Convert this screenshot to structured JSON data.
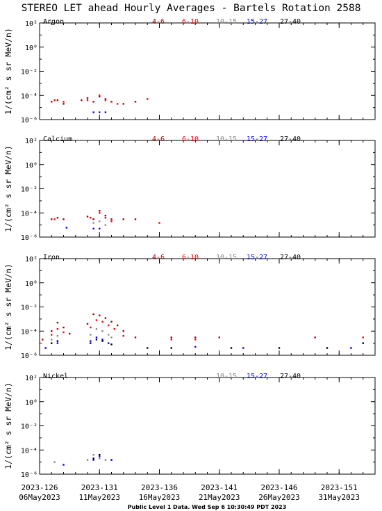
{
  "title": "STEREO LET ahead Hourly Averages - Bartels Rotation 2588",
  "footer": "Public Level 1 Data. Wed Sep  6 10:30:49 PDT 2023",
  "ylabel": "1/(cm² s sr MeV/n)",
  "chart_data": {
    "type": "scatter",
    "y_scale": "log",
    "ylim": [
      1e-06,
      100
    ],
    "y_ticks": [
      {
        "value": 100,
        "label": "10²"
      },
      {
        "value": 1,
        "label": "10⁰"
      },
      {
        "value": 0.01,
        "label": "10⁻²"
      },
      {
        "value": 0.0001,
        "label": "10⁻⁴"
      },
      {
        "value": 1e-06,
        "label": "10⁻⁶"
      }
    ],
    "xlim": [
      "2023-05-06",
      "2023-06-03"
    ],
    "x_ticks": [
      {
        "date": "2023-05-06",
        "doy": "2023-126",
        "label": "06May2023"
      },
      {
        "date": "2023-05-11",
        "doy": "2023-131",
        "label": "11May2023"
      },
      {
        "date": "2023-05-16",
        "doy": "2023-136",
        "label": "16May2023"
      },
      {
        "date": "2023-05-21",
        "doy": "2023-141",
        "label": "21May2023"
      },
      {
        "date": "2023-05-26",
        "doy": "2023-146",
        "label": "26May2023"
      },
      {
        "date": "2023-05-31",
        "doy": "2023-151",
        "label": "31May2023"
      }
    ],
    "energy_bands": [
      {
        "label": "4-6",
        "color": "#a50000"
      },
      {
        "label": "6-10",
        "color": "#ff0000"
      },
      {
        "label": "10-15",
        "color": "#888888"
      },
      {
        "label": "15-27",
        "color": "#0000ff"
      },
      {
        "label": "27-40",
        "color": "#000000"
      }
    ],
    "panels": [
      {
        "element": "Argon",
        "legend": [
          "4-6",
          "6-10",
          "10-15",
          "15-27",
          "27-40"
        ],
        "series": [
          {
            "band": "4-6",
            "points": [
              [
                "2023-05-07",
                3e-05
              ],
              [
                "2023-05-07T12:00",
                4e-05
              ],
              [
                "2023-05-08",
                2e-05
              ],
              [
                "2023-05-09T12:00",
                4e-05
              ],
              [
                "2023-05-10",
                6e-05
              ],
              [
                "2023-05-10T12:00",
                3e-05
              ],
              [
                "2023-05-11",
                8e-05
              ],
              [
                "2023-05-11T12:00",
                5e-05
              ],
              [
                "2023-05-12",
                3e-05
              ],
              [
                "2023-05-13",
                2e-05
              ],
              [
                "2023-05-14",
                3e-05
              ]
            ]
          },
          {
            "band": "6-10",
            "points": [
              [
                "2023-05-07T06:00",
                4e-05
              ],
              [
                "2023-05-08",
                3e-05
              ],
              [
                "2023-05-10",
                4e-05
              ],
              [
                "2023-05-11",
                0.0001
              ],
              [
                "2023-05-11T12:00",
                4e-05
              ],
              [
                "2023-05-12",
                3e-05
              ],
              [
                "2023-05-12T12:00",
                2e-05
              ],
              [
                "2023-05-15",
                5e-05
              ]
            ]
          },
          {
            "band": "15-27",
            "points": [
              [
                "2023-05-10T12:00",
                4e-06
              ],
              [
                "2023-05-11",
                4e-06
              ],
              [
                "2023-05-11T12:00",
                4e-06
              ]
            ]
          }
        ]
      },
      {
        "element": "Calcium",
        "legend": [
          "4-6",
          "6-10",
          "10-15",
          "15-27",
          "27-40"
        ],
        "series": [
          {
            "band": "4-6",
            "points": [
              [
                "2023-05-07",
                3e-05
              ],
              [
                "2023-05-07T12:00",
                4e-05
              ],
              [
                "2023-05-08",
                3e-05
              ],
              [
                "2023-05-10",
                5e-05
              ],
              [
                "2023-05-10T12:00",
                3e-05
              ],
              [
                "2023-05-11",
                0.00015
              ],
              [
                "2023-05-11T12:00",
                6e-05
              ],
              [
                "2023-05-12",
                3e-05
              ],
              [
                "2023-05-13",
                3e-05
              ],
              [
                "2023-05-14",
                3e-05
              ]
            ]
          },
          {
            "band": "6-10",
            "points": [
              [
                "2023-05-07T06:00",
                3e-05
              ],
              [
                "2023-05-10T06:00",
                4e-05
              ],
              [
                "2023-05-11",
                0.0001
              ],
              [
                "2023-05-11T12:00",
                4e-05
              ],
              [
                "2023-05-12",
                2e-05
              ],
              [
                "2023-05-16",
                1.5e-05
              ]
            ]
          },
          {
            "band": "10-15",
            "points": [
              [
                "2023-05-10T12:00",
                1.5e-05
              ],
              [
                "2023-05-11",
                2e-05
              ],
              [
                "2023-05-11T12:00",
                1e-05
              ]
            ]
          },
          {
            "band": "15-27",
            "points": [
              [
                "2023-05-08T06:00",
                6e-06
              ],
              [
                "2023-05-10T12:00",
                5e-06
              ],
              [
                "2023-05-11",
                5e-06
              ]
            ]
          }
        ]
      },
      {
        "element": "Iron",
        "legend": [
          "4-6",
          "6-10",
          "10-15",
          "15-27",
          "27-40"
        ],
        "series": [
          {
            "band": "4-6",
            "points": [
              [
                "2023-05-06T06:00",
                2e-05
              ],
              [
                "2023-05-07",
                0.0001
              ],
              [
                "2023-05-07T12:00",
                0.0005
              ],
              [
                "2023-05-08",
                0.0002
              ],
              [
                "2023-05-08T12:00",
                6e-05
              ],
              [
                "2023-05-10",
                0.0004
              ],
              [
                "2023-05-10T12:00",
                0.0025
              ],
              [
                "2023-05-11",
                0.002
              ],
              [
                "2023-05-11T12:00",
                0.0012
              ],
              [
                "2023-05-12",
                0.0006
              ],
              [
                "2023-05-12T12:00",
                0.0003
              ],
              [
                "2023-05-13",
                0.0001
              ],
              [
                "2023-05-14",
                3e-05
              ],
              [
                "2023-05-17",
                3e-05
              ],
              [
                "2023-05-19",
                3e-05
              ],
              [
                "2023-05-21",
                3e-05
              ],
              [
                "2023-05-29",
                3e-05
              ]
            ]
          },
          {
            "band": "6-10",
            "points": [
              [
                "2023-05-07",
                5e-05
              ],
              [
                "2023-05-07T12:00",
                0.00015
              ],
              [
                "2023-05-08",
                8e-05
              ],
              [
                "2023-05-10T06:00",
                0.0002
              ],
              [
                "2023-05-10T18:00",
                0.0008
              ],
              [
                "2023-05-11T06:00",
                0.0006
              ],
              [
                "2023-05-11T18:00",
                0.0003
              ],
              [
                "2023-05-12T06:00",
                0.00015
              ],
              [
                "2023-05-13",
                4e-05
              ],
              [
                "2023-05-17",
                2e-05
              ],
              [
                "2023-05-19",
                2e-05
              ],
              [
                "2023-06-02",
                3e-05
              ]
            ]
          },
          {
            "band": "10-15",
            "points": [
              [
                "2023-05-07",
                2e-05
              ],
              [
                "2023-05-07T12:00",
                4e-05
              ],
              [
                "2023-05-10T06:00",
                5e-05
              ],
              [
                "2023-05-10T18:00",
                0.00015
              ],
              [
                "2023-05-11T06:00",
                0.0001
              ],
              [
                "2023-05-11T18:00",
                5e-05
              ],
              [
                "2023-05-12",
                3e-05
              ]
            ]
          },
          {
            "band": "15-27",
            "points": [
              [
                "2023-05-06T12:00",
                4e-06
              ],
              [
                "2023-05-07T12:00",
                1e-05
              ],
              [
                "2023-05-10T06:00",
                1.5e-05
              ],
              [
                "2023-05-10T18:00",
                3e-05
              ],
              [
                "2023-05-11T06:00",
                2e-05
              ],
              [
                "2023-05-11T18:00",
                1e-05
              ],
              [
                "2023-05-19",
                5e-06
              ],
              [
                "2023-05-23",
                4e-06
              ],
              [
                "2023-06-01",
                4e-06
              ]
            ]
          },
          {
            "band": "27-40",
            "points": [
              [
                "2023-05-07",
                1e-05
              ],
              [
                "2023-05-07T12:00",
                1.5e-05
              ],
              [
                "2023-05-10T06:00",
                1e-05
              ],
              [
                "2023-05-10T18:00",
                2e-05
              ],
              [
                "2023-05-11T06:00",
                1.5e-05
              ],
              [
                "2023-05-12",
                8e-06
              ],
              [
                "2023-05-15",
                4e-06
              ],
              [
                "2023-05-17",
                4e-06
              ],
              [
                "2023-05-22",
                4e-06
              ],
              [
                "2023-05-26",
                4e-06
              ],
              [
                "2023-05-30",
                4e-06
              ],
              [
                "2023-06-02",
                1e-05
              ]
            ]
          }
        ]
      },
      {
        "element": "Nickel",
        "legend": [
          "10-15",
          "15-27",
          "27-40"
        ],
        "series": [
          {
            "band": "10-15",
            "points": [
              [
                "2023-05-07T06:00",
                1e-05
              ],
              [
                "2023-05-10",
                1.5e-05
              ],
              [
                "2023-05-10T12:00",
                4e-05
              ],
              [
                "2023-05-11",
                2e-05
              ],
              [
                "2023-05-11T12:00",
                1.5e-05
              ],
              [
                "2023-05-12",
                1.5e-05
              ]
            ]
          },
          {
            "band": "15-27",
            "points": [
              [
                "2023-05-08",
                6e-06
              ],
              [
                "2023-05-10T12:00",
                1.5e-05
              ],
              [
                "2023-05-11",
                3e-05
              ],
              [
                "2023-05-12",
                1.5e-05
              ]
            ]
          },
          {
            "band": "27-40",
            "points": [
              [
                "2023-05-10T12:00",
                2e-05
              ],
              [
                "2023-05-11",
                4e-05
              ]
            ]
          }
        ]
      }
    ]
  }
}
